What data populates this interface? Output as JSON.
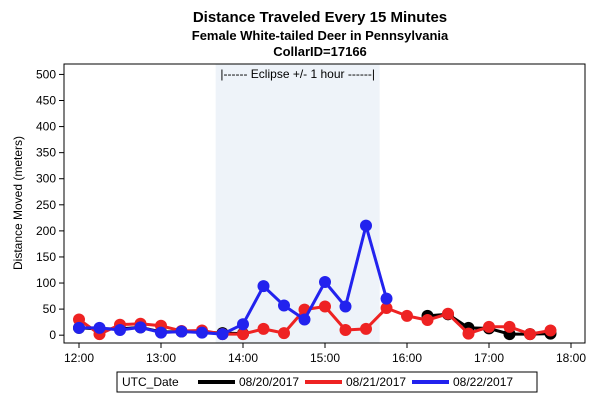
{
  "chart_data": {
    "type": "line",
    "title": "Distance Traveled Every 15 Minutes",
    "subtitle_1": "Female White-tailed Deer in Pennsylvania",
    "subtitle_2": "CollarID=17166",
    "xlabel": "",
    "ylabel": "Distance Moved (meters)",
    "x_tick_labels": [
      "12:00",
      "13:00",
      "14:00",
      "15:00",
      "16:00",
      "17:00",
      "18:00"
    ],
    "y_ticks": [
      0,
      50,
      100,
      150,
      200,
      250,
      300,
      350,
      400,
      450,
      500
    ],
    "xlim": [
      "12:00",
      "18:00"
    ],
    "ylim": [
      -15,
      520
    ],
    "grid": false,
    "eclipse_band": {
      "start": "13:40",
      "end": "15:40",
      "label": "|------  Eclipse +/- 1 hour  ------|",
      "color": "#eef3f9"
    },
    "legend": {
      "title": "UTC_Date",
      "position": "bottom"
    },
    "series": [
      {
        "name": "08/20/2017",
        "color": "#000000",
        "points": [
          [
            "12:00",
            14
          ],
          [
            "12:15",
            12
          ],
          [
            "12:30",
            12
          ],
          [
            "12:45",
            15
          ],
          [
            "13:00",
            6
          ],
          [
            "13:15",
            7
          ],
          [
            "13:30",
            6
          ],
          [
            "13:45",
            4
          ],
          [
            "14:00",
            3
          ],
          [
            "16:15",
            37
          ],
          [
            "16:30",
            40
          ],
          [
            "16:45",
            14
          ],
          [
            "17:00",
            13
          ],
          [
            "17:15",
            2
          ],
          [
            "17:30",
            2
          ],
          [
            "17:45",
            3
          ]
        ]
      },
      {
        "name": "08/21/2017",
        "color": "#ee2222",
        "points": [
          [
            "12:00",
            30
          ],
          [
            "12:15",
            2
          ],
          [
            "12:30",
            20
          ],
          [
            "12:45",
            22
          ],
          [
            "13:00",
            18
          ],
          [
            "13:15",
            8
          ],
          [
            "13:30",
            9
          ],
          [
            "13:45",
            2
          ],
          [
            "14:00",
            2
          ],
          [
            "14:15",
            12
          ],
          [
            "14:30",
            4
          ],
          [
            "14:45",
            49
          ],
          [
            "15:00",
            55
          ],
          [
            "15:15",
            10
          ],
          [
            "15:30",
            12
          ],
          [
            "15:45",
            52
          ],
          [
            "16:00",
            37
          ],
          [
            "16:15",
            29
          ],
          [
            "16:30",
            41
          ],
          [
            "16:45",
            3
          ],
          [
            "17:00",
            16
          ],
          [
            "17:15",
            16
          ],
          [
            "17:30",
            2
          ],
          [
            "17:45",
            9
          ]
        ]
      },
      {
        "name": "08/22/2017",
        "color": "#2222ee",
        "points": [
          [
            "12:00",
            14
          ],
          [
            "12:15",
            14
          ],
          [
            "12:30",
            10
          ],
          [
            "12:45",
            15
          ],
          [
            "13:00",
            5
          ],
          [
            "13:15",
            7
          ],
          [
            "13:30",
            5
          ],
          [
            "13:45",
            2
          ],
          [
            "14:00",
            21
          ],
          [
            "14:15",
            94
          ],
          [
            "14:30",
            57
          ],
          [
            "14:45",
            30
          ],
          [
            "15:00",
            102
          ],
          [
            "15:15",
            55
          ],
          [
            "15:30",
            210
          ],
          [
            "15:45",
            70
          ]
        ]
      }
    ]
  }
}
